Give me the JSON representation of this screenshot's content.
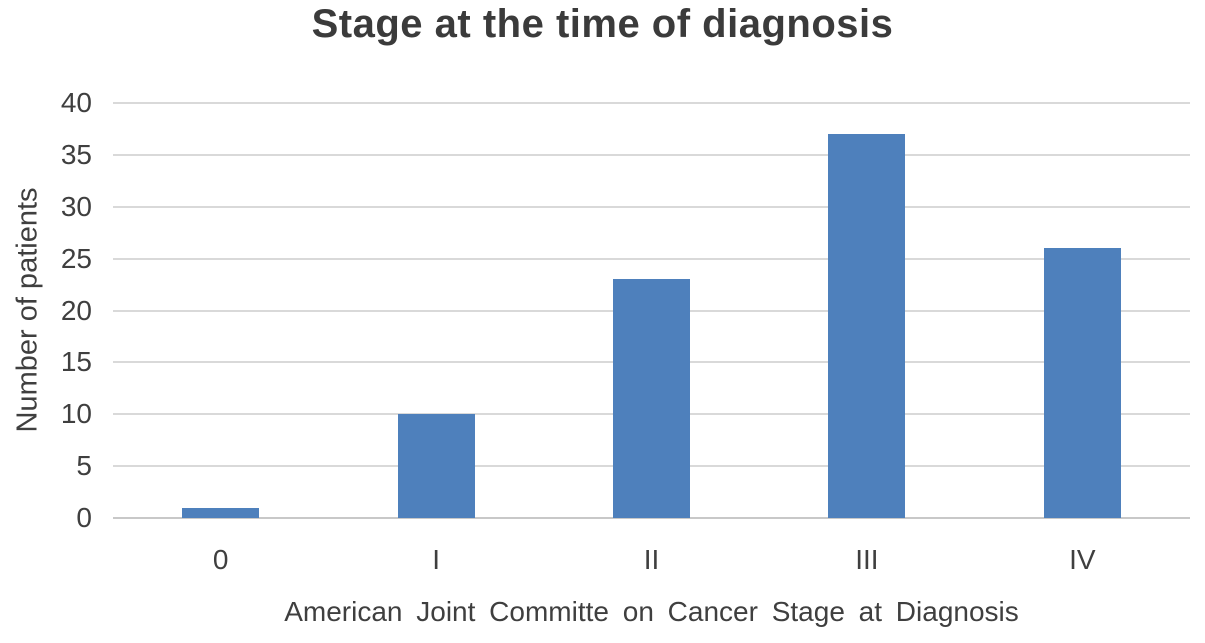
{
  "chart_data": {
    "type": "bar",
    "title": "Stage at the time of diagnosis",
    "xlabel": "American Joint Committe on Cancer Stage at Diagnosis",
    "ylabel": "Number of patients",
    "categories": [
      "0",
      "I",
      "II",
      "III",
      "IV"
    ],
    "values": [
      1,
      10,
      23,
      37,
      26
    ],
    "ylim": [
      0,
      40
    ],
    "yticks": [
      0,
      5,
      10,
      15,
      20,
      25,
      30,
      35,
      40
    ],
    "grid": "horizontal-only",
    "legend": "none",
    "colors": {
      "bar": "#4E80BC",
      "gridline": "#D9D9D9",
      "axis_line": "#C8C8C8",
      "text": "#3F3F3F",
      "title_text": "#3B3B3B",
      "background": "#FFFFFF"
    }
  }
}
